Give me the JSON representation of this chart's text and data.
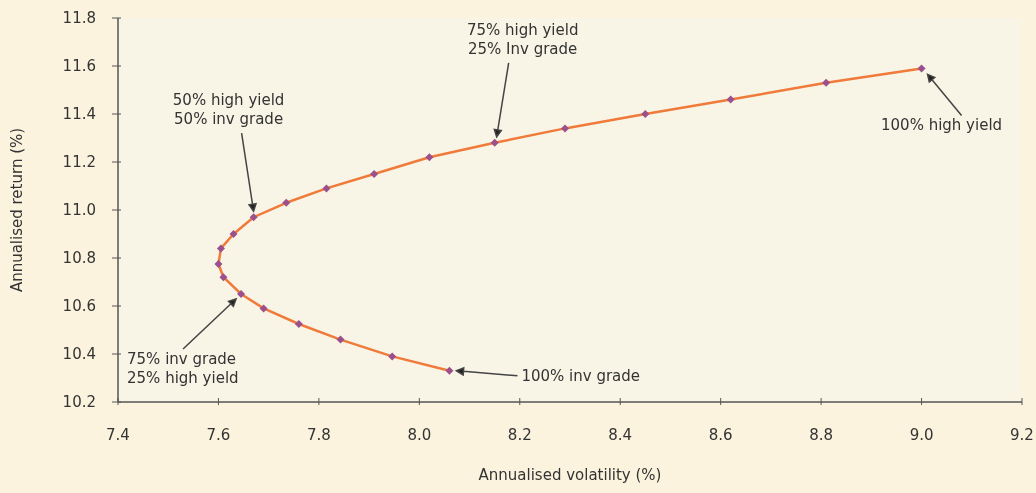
{
  "chart_data": {
    "type": "line",
    "xlabel": "Annualised volatility (%)",
    "ylabel": "Annualised return (%)",
    "x": [
      8.06,
      7.946,
      7.843,
      7.76,
      7.69,
      7.645,
      7.61,
      7.6,
      7.605,
      7.63,
      7.67,
      7.735,
      7.815,
      7.91,
      8.02,
      8.15,
      8.29,
      8.45,
      8.62,
      8.81,
      9.0
    ],
    "series": [
      {
        "color": "#f07a3a",
        "values": [
          10.33,
          10.39,
          10.46,
          10.525,
          10.59,
          10.65,
          10.72,
          10.775,
          10.84,
          10.9,
          10.97,
          11.03,
          11.09,
          11.15,
          11.22,
          11.28,
          11.34,
          11.4,
          11.46,
          11.53,
          11.59
        ]
      }
    ],
    "marker": "diamond",
    "line_style": "solid",
    "grid": false,
    "xlim": [
      7.4,
      9.2
    ],
    "xticks": [
      7.4,
      7.6,
      7.8,
      {
        "value": 8,
        "label": "8.0"
      },
      8.2,
      8.4,
      8.6,
      8.8,
      {
        "value": 9,
        "label": "9.0"
      },
      9.2
    ],
    "ylim": [
      10.2,
      11.8
    ],
    "yticks": [
      10.2,
      10.4,
      10.6,
      10.8,
      {
        "value": 11,
        "label": "11.0"
      },
      11.2,
      11.4,
      11.6,
      11.8
    ],
    "annotations": [
      "50% high yield\n50% inv grade",
      "75% high yield\n25% Inv grade",
      "100% high yield",
      "75% inv grade\n25% high yield",
      "100% inv grade"
    ]
  }
}
